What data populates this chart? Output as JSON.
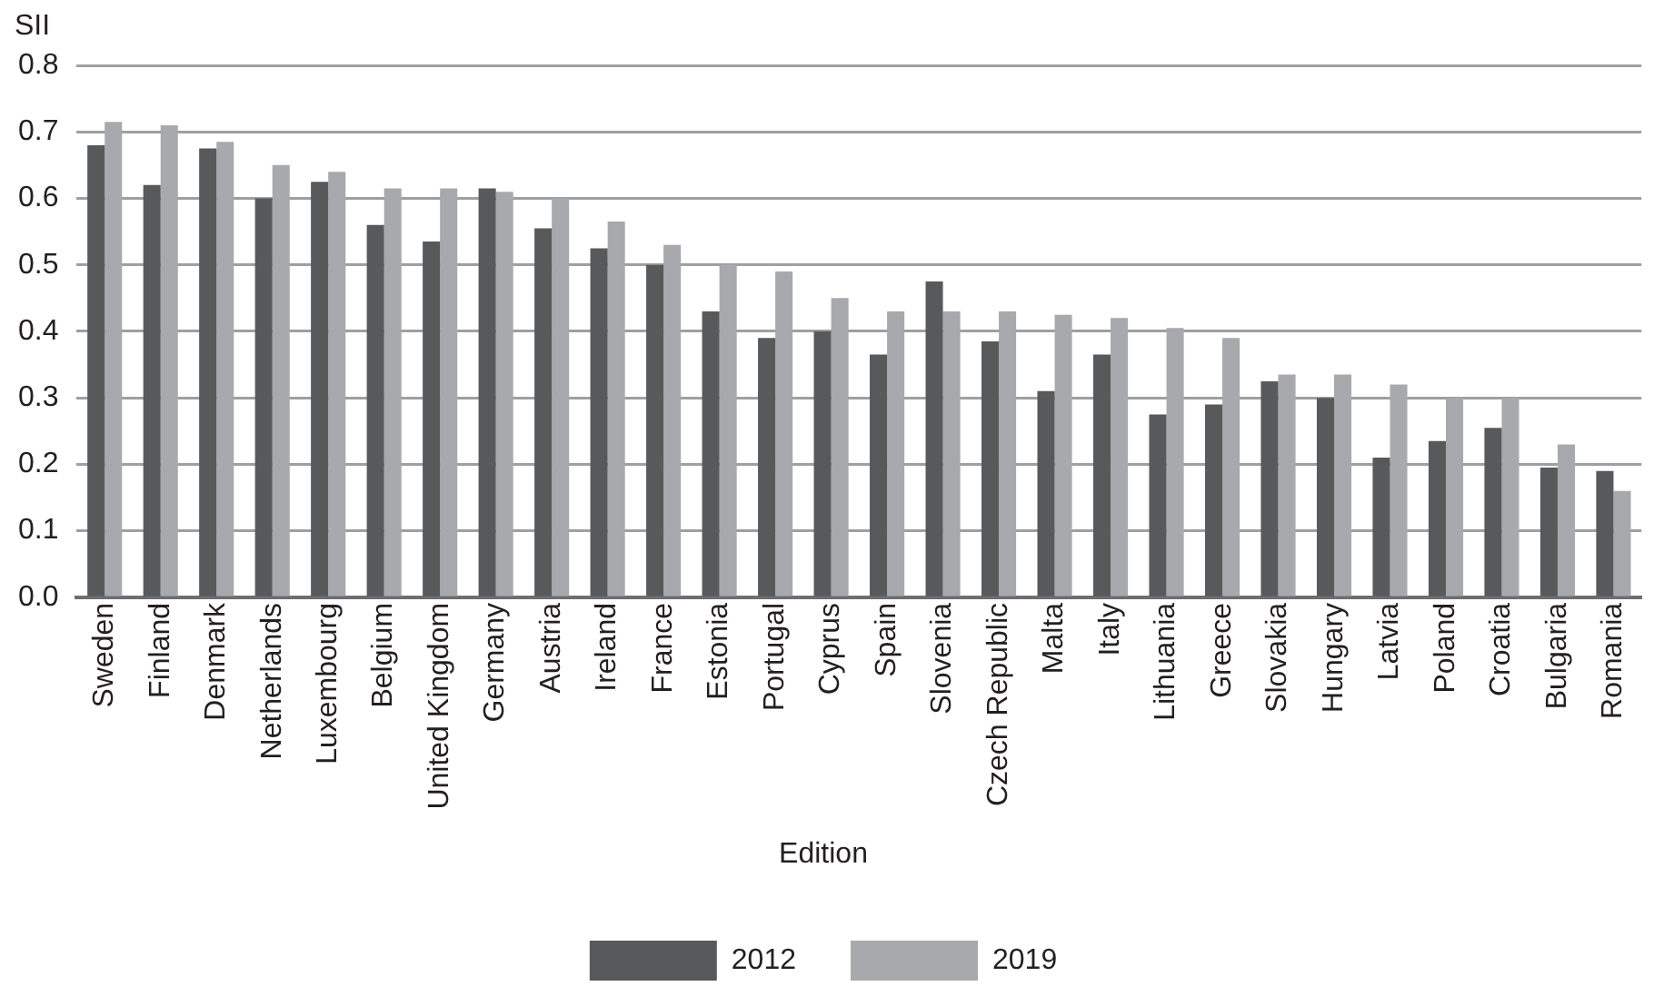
{
  "chart_data": {
    "type": "bar",
    "ylabel": "SII",
    "legend_title": "Edition",
    "categories": [
      "Sweden",
      "Finland",
      "Denmark",
      "Netherlands",
      "Luxembourg",
      "Belgium",
      "United Kingdom",
      "Germany",
      "Austria",
      "Ireland",
      "France",
      "Estonia",
      "Portugal",
      "Cyprus",
      "Spain",
      "Slovenia",
      "Czech Republic",
      "Malta",
      "Italy",
      "Lithuania",
      "Greece",
      "Slovakia",
      "Hungary",
      "Latvia",
      "Poland",
      "Croatia",
      "Bulgaria",
      "Romania"
    ],
    "series": [
      {
        "name": "2012",
        "color": "#58595b",
        "values": [
          0.68,
          0.62,
          0.675,
          0.6,
          0.625,
          0.56,
          0.535,
          0.615,
          0.555,
          0.525,
          0.5,
          0.43,
          0.39,
          0.4,
          0.365,
          0.475,
          0.385,
          0.31,
          0.365,
          0.275,
          0.29,
          0.325,
          0.3,
          0.21,
          0.235,
          0.255,
          0.195,
          0.19
        ]
      },
      {
        "name": "2019",
        "color": "#a7a9ac",
        "values": [
          0.715,
          0.71,
          0.685,
          0.65,
          0.64,
          0.615,
          0.615,
          0.61,
          0.6,
          0.565,
          0.53,
          0.5,
          0.49,
          0.45,
          0.43,
          0.43,
          0.43,
          0.425,
          0.42,
          0.405,
          0.39,
          0.335,
          0.335,
          0.32,
          0.3,
          0.3,
          0.23,
          0.16
        ]
      }
    ],
    "ylim": [
      0,
      0.8
    ],
    "yticks": [
      {
        "value": 0,
        "label": "0.0"
      },
      {
        "value": 0.1,
        "label": "0.1"
      },
      {
        "value": 0.2,
        "label": "0.2"
      },
      {
        "value": 0.3,
        "label": "0.3"
      },
      {
        "value": 0.4,
        "label": "0.4"
      },
      {
        "value": 0.5,
        "label": "0.5"
      },
      {
        "value": 0.6,
        "label": "0.6"
      },
      {
        "value": 0.7,
        "label": "0.7"
      },
      {
        "value": 0.8,
        "label": "0.8"
      }
    ],
    "grid": "y",
    "legend": "bottom"
  }
}
